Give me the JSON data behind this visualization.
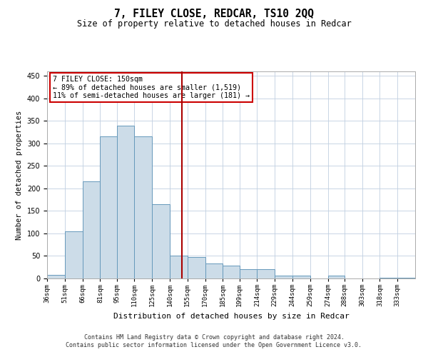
{
  "title": "7, FILEY CLOSE, REDCAR, TS10 2QQ",
  "subtitle": "Size of property relative to detached houses in Redcar",
  "xlabel": "Distribution of detached houses by size in Redcar",
  "ylabel": "Number of detached properties",
  "footer_line1": "Contains HM Land Registry data © Crown copyright and database right 2024.",
  "footer_line2": "Contains public sector information licensed under the Open Government Licence v3.0.",
  "annotation_line1": "7 FILEY CLOSE: 150sqm",
  "annotation_line2": "← 89% of detached houses are smaller (1,519)",
  "annotation_line3": "11% of semi-detached houses are larger (181) →",
  "property_size": 150,
  "bar_color": "#ccdce8",
  "bar_edge_color": "#6699bb",
  "vline_color": "#aa0000",
  "annotation_box_color": "#cc0000",
  "categories": [
    "36sqm",
    "51sqm",
    "66sqm",
    "81sqm",
    "95sqm",
    "110sqm",
    "125sqm",
    "140sqm",
    "155sqm",
    "170sqm",
    "185sqm",
    "199sqm",
    "214sqm",
    "229sqm",
    "244sqm",
    "259sqm",
    "274sqm",
    "288sqm",
    "303sqm",
    "318sqm",
    "333sqm"
  ],
  "bar_heights": [
    8,
    105,
    215,
    315,
    340,
    315,
    165,
    50,
    48,
    33,
    28,
    20,
    20,
    7,
    7,
    0,
    7,
    0,
    0,
    2,
    2
  ],
  "bin_edges": [
    36,
    51,
    66,
    81,
    95,
    110,
    125,
    140,
    155,
    170,
    185,
    199,
    214,
    229,
    244,
    259,
    274,
    288,
    303,
    318,
    333,
    348
  ],
  "ylim": [
    0,
    460
  ],
  "yticks": [
    0,
    50,
    100,
    150,
    200,
    250,
    300,
    350,
    400,
    450
  ],
  "background_color": "#ffffff",
  "grid_color": "#c0cfe0"
}
